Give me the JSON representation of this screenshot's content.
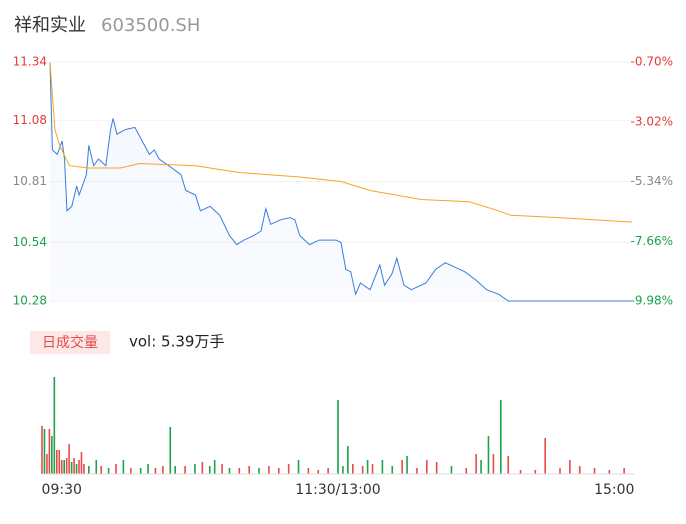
{
  "chart_data": [
    {
      "type": "line",
      "title": "祥和实业",
      "subtitle": "603500.SH",
      "xlim": [
        0,
        240
      ],
      "ylim": [
        10.28,
        11.34
      ],
      "yticks": [
        {
          "value": 10.28,
          "label": "10.28"
        },
        10.54,
        10.81,
        11.08,
        11.34
      ],
      "ytick_colors": [
        "#1aa34a",
        "#1aa34a",
        "#888888",
        "#e83a3a",
        "#e83a3a"
      ],
      "y2lim": [
        -9.98,
        -0.7
      ],
      "y2ticks": [
        {
          "value": -9.98,
          "label": "-9.98%"
        },
        {
          "value": -7.66,
          "label": "-7.66%"
        },
        {
          "value": -5.34,
          "label": "-5.34%"
        },
        {
          "value": -3.02,
          "label": "-3.02%"
        },
        {
          "value": -0.7,
          "label": "-0.70%"
        }
      ],
      "series": [
        {
          "color": "#3b7ddd",
          "x": [
            0,
            1,
            3,
            5,
            6,
            7,
            9,
            11,
            12,
            15,
            16,
            18,
            20,
            23,
            25,
            26,
            27.6,
            31,
            35,
            38,
            41,
            43,
            45,
            49,
            54,
            56,
            60,
            62,
            66,
            68,
            70,
            74,
            77,
            80,
            84,
            87,
            89,
            91,
            95,
            99,
            101,
            103,
            107,
            111,
            118,
            120,
            122,
            124,
            126,
            128,
            132,
            136,
            138,
            141,
            143,
            146,
            149,
            155,
            159,
            163,
            167,
            171,
            176,
            180,
            185,
            189,
            240
          ],
          "values": [
            11.34,
            10.95,
            10.93,
            10.99,
            10.91,
            10.68,
            10.7,
            10.79,
            10.75,
            10.84,
            10.97,
            10.88,
            10.91,
            10.88,
            11.04,
            11.09,
            11.02,
            11.04,
            11.05,
            10.99,
            10.93,
            10.95,
            10.91,
            10.88,
            10.84,
            10.77,
            10.75,
            10.68,
            10.7,
            10.68,
            10.66,
            10.57,
            10.53,
            10.55,
            10.57,
            10.59,
            10.69,
            10.62,
            10.64,
            10.65,
            10.64,
            10.57,
            10.53,
            10.55,
            10.55,
            10.54,
            10.42,
            10.41,
            10.31,
            10.36,
            10.33,
            10.44,
            10.35,
            10.4,
            10.47,
            10.35,
            10.33,
            10.36,
            10.42,
            10.45,
            10.43,
            10.41,
            10.37,
            10.33,
            10.31,
            10.28,
            10.28
          ]
        },
        {
          "color": "#f5a623",
          "x": [
            0,
            2,
            4,
            8,
            16,
            29,
            37,
            60,
            78,
            103,
            120,
            132,
            153,
            173,
            185,
            190,
            210,
            240
          ],
          "values": [
            11.34,
            11.04,
            10.97,
            10.88,
            10.87,
            10.87,
            10.89,
            10.88,
            10.85,
            10.83,
            10.81,
            10.77,
            10.73,
            10.72,
            10.68,
            10.66,
            10.65,
            10.63
          ]
        }
      ]
    },
    {
      "type": "bar",
      "legend": "日成交量",
      "annotation": "vol: 5.39万手",
      "xlim": [
        0,
        240
      ],
      "xticks": [
        {
          "value": 8,
          "label": "09:30"
        },
        {
          "value": 120,
          "label": "11:30/13:00"
        },
        {
          "value": 232,
          "label": "15:00"
        }
      ],
      "x": [
        0,
        1,
        2,
        3,
        4,
        5,
        6,
        7,
        8,
        9,
        10,
        11,
        12,
        13,
        14,
        15,
        16,
        17,
        19,
        22,
        24,
        27,
        30,
        33,
        36,
        40,
        43,
        46,
        49,
        52,
        54,
        58,
        62,
        65,
        68,
        70,
        73,
        76,
        80,
        84,
        88,
        92,
        96,
        100,
        104,
        108,
        112,
        116,
        120,
        122,
        124,
        126,
        130,
        132,
        134,
        138,
        142,
        146,
        148,
        152,
        156,
        160,
        166,
        172,
        176,
        178,
        181,
        183,
        186,
        189,
        194,
        200,
        204,
        210,
        214,
        218,
        224,
        230,
        236
      ],
      "values": [
        48,
        45,
        20,
        45,
        38,
        97,
        24,
        24,
        14,
        14,
        16,
        30,
        12,
        16,
        10,
        14,
        22,
        10,
        8,
        14,
        8,
        6,
        10,
        14,
        6,
        6,
        10,
        6,
        8,
        47,
        8,
        8,
        10,
        12,
        8,
        14,
        10,
        6,
        6,
        8,
        6,
        8,
        6,
        10,
        14,
        6,
        4,
        6,
        74,
        8,
        28,
        10,
        8,
        14,
        10,
        14,
        8,
        14,
        18,
        6,
        14,
        12,
        8,
        6,
        20,
        14,
        38,
        20,
        74,
        18,
        4,
        4,
        36,
        6,
        14,
        8,
        6,
        4,
        6
      ],
      "colors": [
        "#e84a4a",
        "#1aa34a",
        "#e84a4a",
        "#e84a4a",
        "#1aa34a",
        "#1aa34a",
        "#e84a4a",
        "#e84a4a",
        "#e84a4a",
        "#1aa34a",
        "#e84a4a",
        "#e84a4a",
        "#1aa34a",
        "#e84a4a",
        "#1aa34a",
        "#e84a4a",
        "#e84a4a",
        "#e84a4a",
        "#1aa34a",
        "#1aa34a",
        "#e84a4a",
        "#1aa34a",
        "#e84a4a",
        "#1aa34a",
        "#e84a4a",
        "#1aa34a",
        "#1aa34a",
        "#e84a4a",
        "#e84a4a",
        "#1aa34a",
        "#1aa34a",
        "#e84a4a",
        "#1aa34a",
        "#e84a4a",
        "#1aa34a",
        "#1aa34a",
        "#e84a4a",
        "#1aa34a",
        "#e84a4a",
        "#e84a4a",
        "#1aa34a",
        "#e84a4a",
        "#e84a4a",
        "#e84a4a",
        "#1aa34a",
        "#e84a4a",
        "#e84a4a",
        "#e84a4a",
        "#1aa34a",
        "#1aa34a",
        "#1aa34a",
        "#e84a4a",
        "#e84a4a",
        "#1aa34a",
        "#e84a4a",
        "#1aa34a",
        "#1aa34a",
        "#e84a4a",
        "#1aa34a",
        "#e84a4a",
        "#e84a4a",
        "#e84a4a",
        "#1aa34a",
        "#e84a4a",
        "#e84a4a",
        "#1aa34a",
        "#1aa34a",
        "#e84a4a",
        "#1aa34a",
        "#e84a4a",
        "#e84a4a",
        "#e84a4a",
        "#e84a4a",
        "#e84a4a",
        "#e84a4a",
        "#e84a4a",
        "#e84a4a",
        "#e84a4a",
        "#e84a4a"
      ]
    }
  ]
}
